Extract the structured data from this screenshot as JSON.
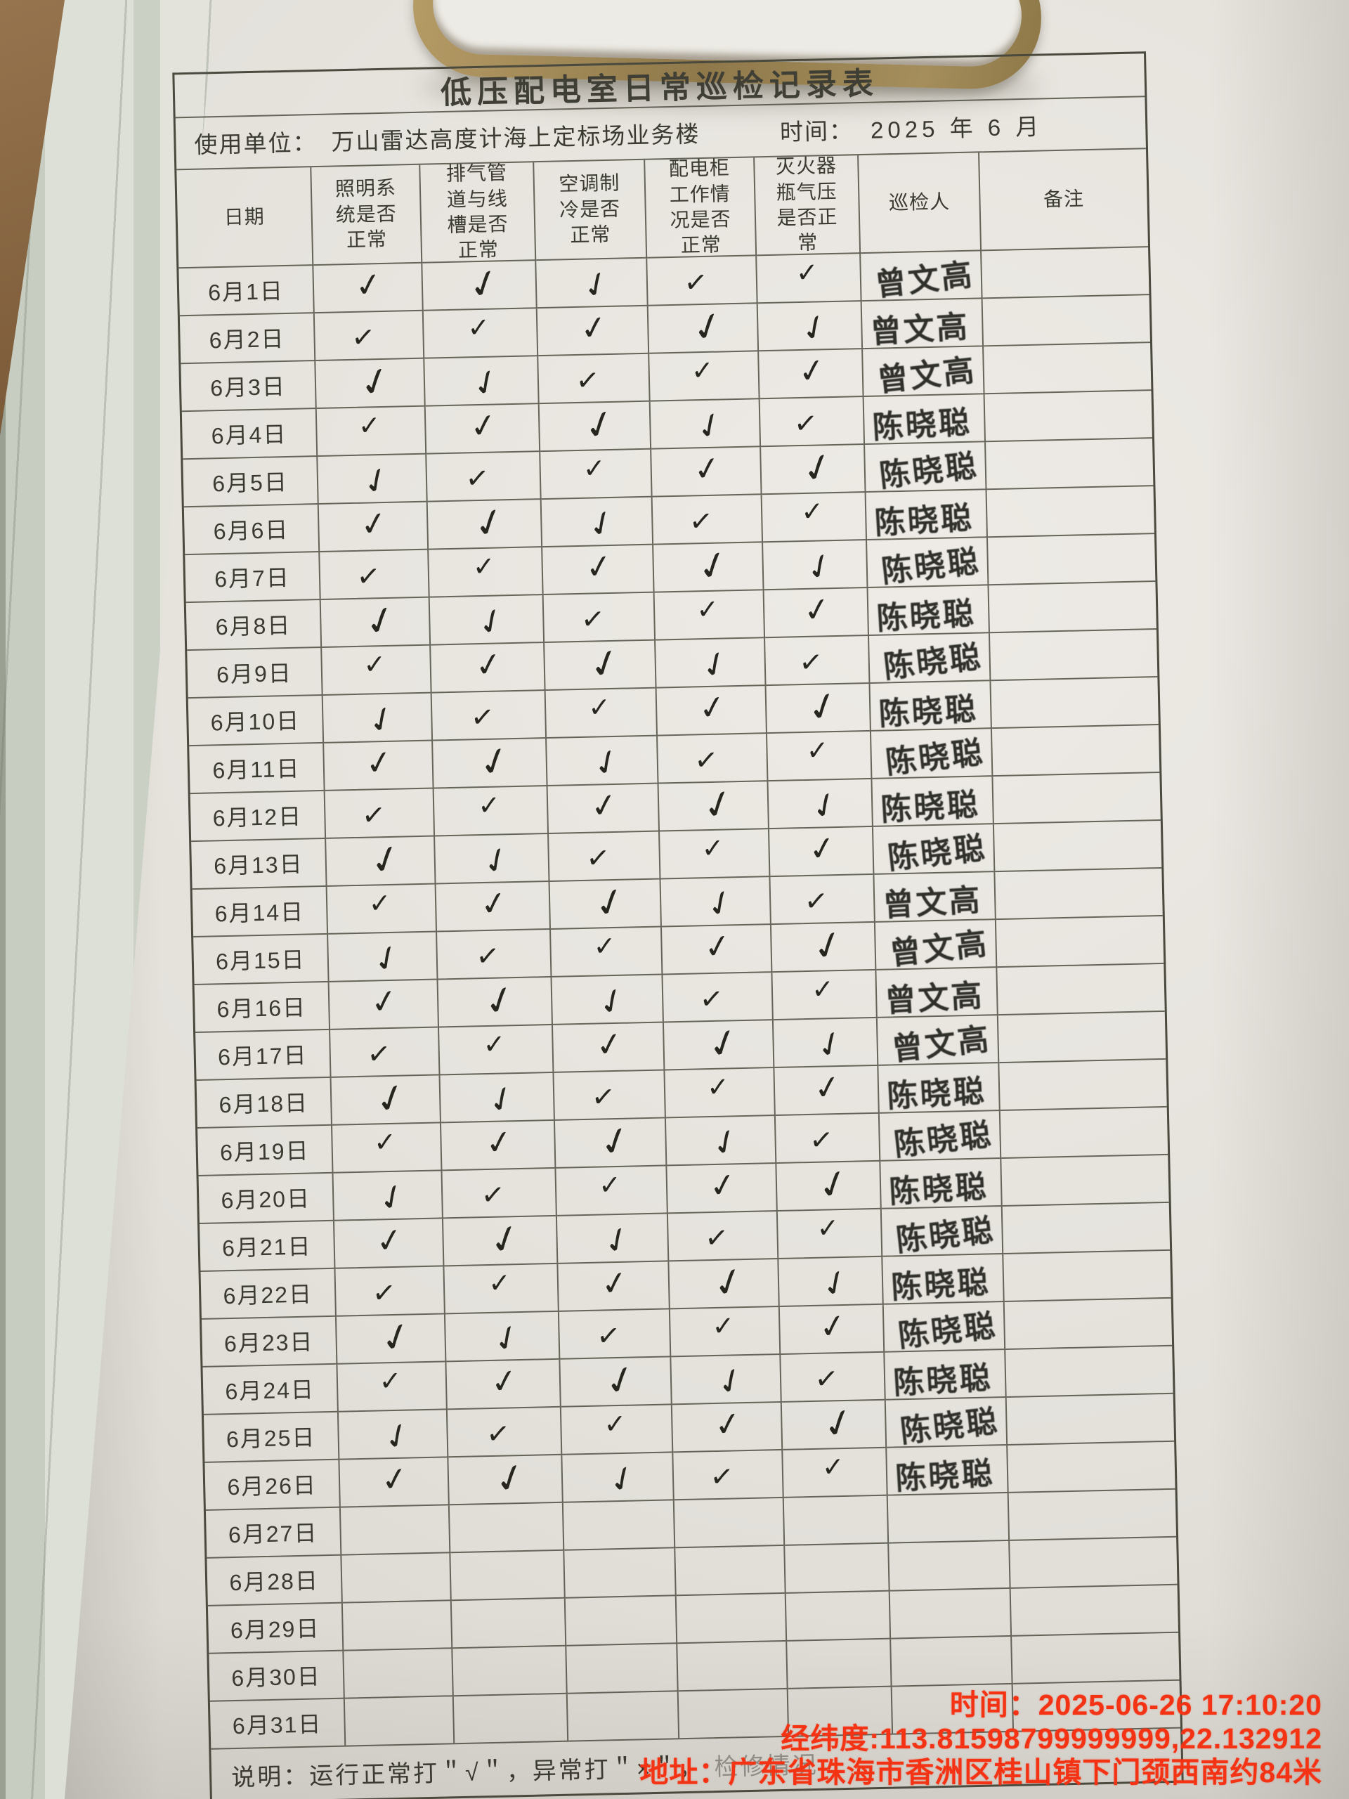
{
  "page": {
    "title": "低压配电室日常巡检记录表",
    "unit_label": "使用单位：",
    "unit_value": "万山雷达高度计海上定标场业务楼",
    "time_label": "时间：",
    "time_value": "2025 年 6 月"
  },
  "table": {
    "columns": [
      "日期",
      "照明系统是否正常",
      "排气管道与线槽是否正常",
      "空调制冷是否正常",
      "配电柜工作情况是否正常",
      "灭火器瓶气压是否正常",
      "巡检人",
      "备注"
    ],
    "check_mark": "✓",
    "rows": [
      {
        "date": "6月1日",
        "checks": [
          true,
          true,
          true,
          true,
          true
        ],
        "inspector": "曾文高",
        "remark": ""
      },
      {
        "date": "6月2日",
        "checks": [
          true,
          true,
          true,
          true,
          true
        ],
        "inspector": "曾文高",
        "remark": ""
      },
      {
        "date": "6月3日",
        "checks": [
          true,
          true,
          true,
          true,
          true
        ],
        "inspector": "曾文高",
        "remark": ""
      },
      {
        "date": "6月4日",
        "checks": [
          true,
          true,
          true,
          true,
          true
        ],
        "inspector": "陈晓聪",
        "remark": ""
      },
      {
        "date": "6月5日",
        "checks": [
          true,
          true,
          true,
          true,
          true
        ],
        "inspector": "陈晓聪",
        "remark": ""
      },
      {
        "date": "6月6日",
        "checks": [
          true,
          true,
          true,
          true,
          true
        ],
        "inspector": "陈晓聪",
        "remark": ""
      },
      {
        "date": "6月7日",
        "checks": [
          true,
          true,
          true,
          true,
          true
        ],
        "inspector": "陈晓聪",
        "remark": ""
      },
      {
        "date": "6月8日",
        "checks": [
          true,
          true,
          true,
          true,
          true
        ],
        "inspector": "陈晓聪",
        "remark": ""
      },
      {
        "date": "6月9日",
        "checks": [
          true,
          true,
          true,
          true,
          true
        ],
        "inspector": "陈晓聪",
        "remark": ""
      },
      {
        "date": "6月10日",
        "checks": [
          true,
          true,
          true,
          true,
          true
        ],
        "inspector": "陈晓聪",
        "remark": ""
      },
      {
        "date": "6月11日",
        "checks": [
          true,
          true,
          true,
          true,
          true
        ],
        "inspector": "陈晓聪",
        "remark": ""
      },
      {
        "date": "6月12日",
        "checks": [
          true,
          true,
          true,
          true,
          true
        ],
        "inspector": "陈晓聪",
        "remark": ""
      },
      {
        "date": "6月13日",
        "checks": [
          true,
          true,
          true,
          true,
          true
        ],
        "inspector": "陈晓聪",
        "remark": ""
      },
      {
        "date": "6月14日",
        "checks": [
          true,
          true,
          true,
          true,
          true
        ],
        "inspector": "曾文高",
        "remark": ""
      },
      {
        "date": "6月15日",
        "checks": [
          true,
          true,
          true,
          true,
          true
        ],
        "inspector": "曾文高",
        "remark": ""
      },
      {
        "date": "6月16日",
        "checks": [
          true,
          true,
          true,
          true,
          true
        ],
        "inspector": "曾文高",
        "remark": ""
      },
      {
        "date": "6月17日",
        "checks": [
          true,
          true,
          true,
          true,
          true
        ],
        "inspector": "曾文高",
        "remark": ""
      },
      {
        "date": "6月18日",
        "checks": [
          true,
          true,
          true,
          true,
          true
        ],
        "inspector": "陈晓聪",
        "remark": ""
      },
      {
        "date": "6月19日",
        "checks": [
          true,
          true,
          true,
          true,
          true
        ],
        "inspector": "陈晓聪",
        "remark": ""
      },
      {
        "date": "6月20日",
        "checks": [
          true,
          true,
          true,
          true,
          true
        ],
        "inspector": "陈晓聪",
        "remark": ""
      },
      {
        "date": "6月21日",
        "checks": [
          true,
          true,
          true,
          true,
          true
        ],
        "inspector": "陈晓聪",
        "remark": ""
      },
      {
        "date": "6月22日",
        "checks": [
          true,
          true,
          true,
          true,
          true
        ],
        "inspector": "陈晓聪",
        "remark": ""
      },
      {
        "date": "6月23日",
        "checks": [
          true,
          true,
          true,
          true,
          true
        ],
        "inspector": "陈晓聪",
        "remark": ""
      },
      {
        "date": "6月24日",
        "checks": [
          true,
          true,
          true,
          true,
          true
        ],
        "inspector": "陈晓聪",
        "remark": ""
      },
      {
        "date": "6月25日",
        "checks": [
          true,
          true,
          true,
          true,
          true
        ],
        "inspector": "陈晓聪",
        "remark": ""
      },
      {
        "date": "6月26日",
        "checks": [
          true,
          true,
          true,
          true,
          true
        ],
        "inspector": "陈晓聪",
        "remark": ""
      },
      {
        "date": "6月27日",
        "checks": [
          false,
          false,
          false,
          false,
          false
        ],
        "inspector": "",
        "remark": ""
      },
      {
        "date": "6月28日",
        "checks": [
          false,
          false,
          false,
          false,
          false
        ],
        "inspector": "",
        "remark": ""
      },
      {
        "date": "6月29日",
        "checks": [
          false,
          false,
          false,
          false,
          false
        ],
        "inspector": "",
        "remark": ""
      },
      {
        "date": "6月30日",
        "checks": [
          false,
          false,
          false,
          false,
          false
        ],
        "inspector": "",
        "remark": ""
      },
      {
        "date": "6月31日",
        "checks": [
          false,
          false,
          false,
          false,
          false
        ],
        "inspector": "",
        "remark": ""
      }
    ]
  },
  "footer": {
    "note_prefix": "说明：运行正常打＂√＂，异常打＂×＂，",
    "note_hidden": "检修情况"
  },
  "overlay": {
    "time": "时间：2025-06-26 17:10:20",
    "coords": "经纬度:113.81598799999999,22.132912",
    "address": "地址：广东省珠海市香洲区桂山镇下门颈西南约84米",
    "color": "#f43214"
  }
}
